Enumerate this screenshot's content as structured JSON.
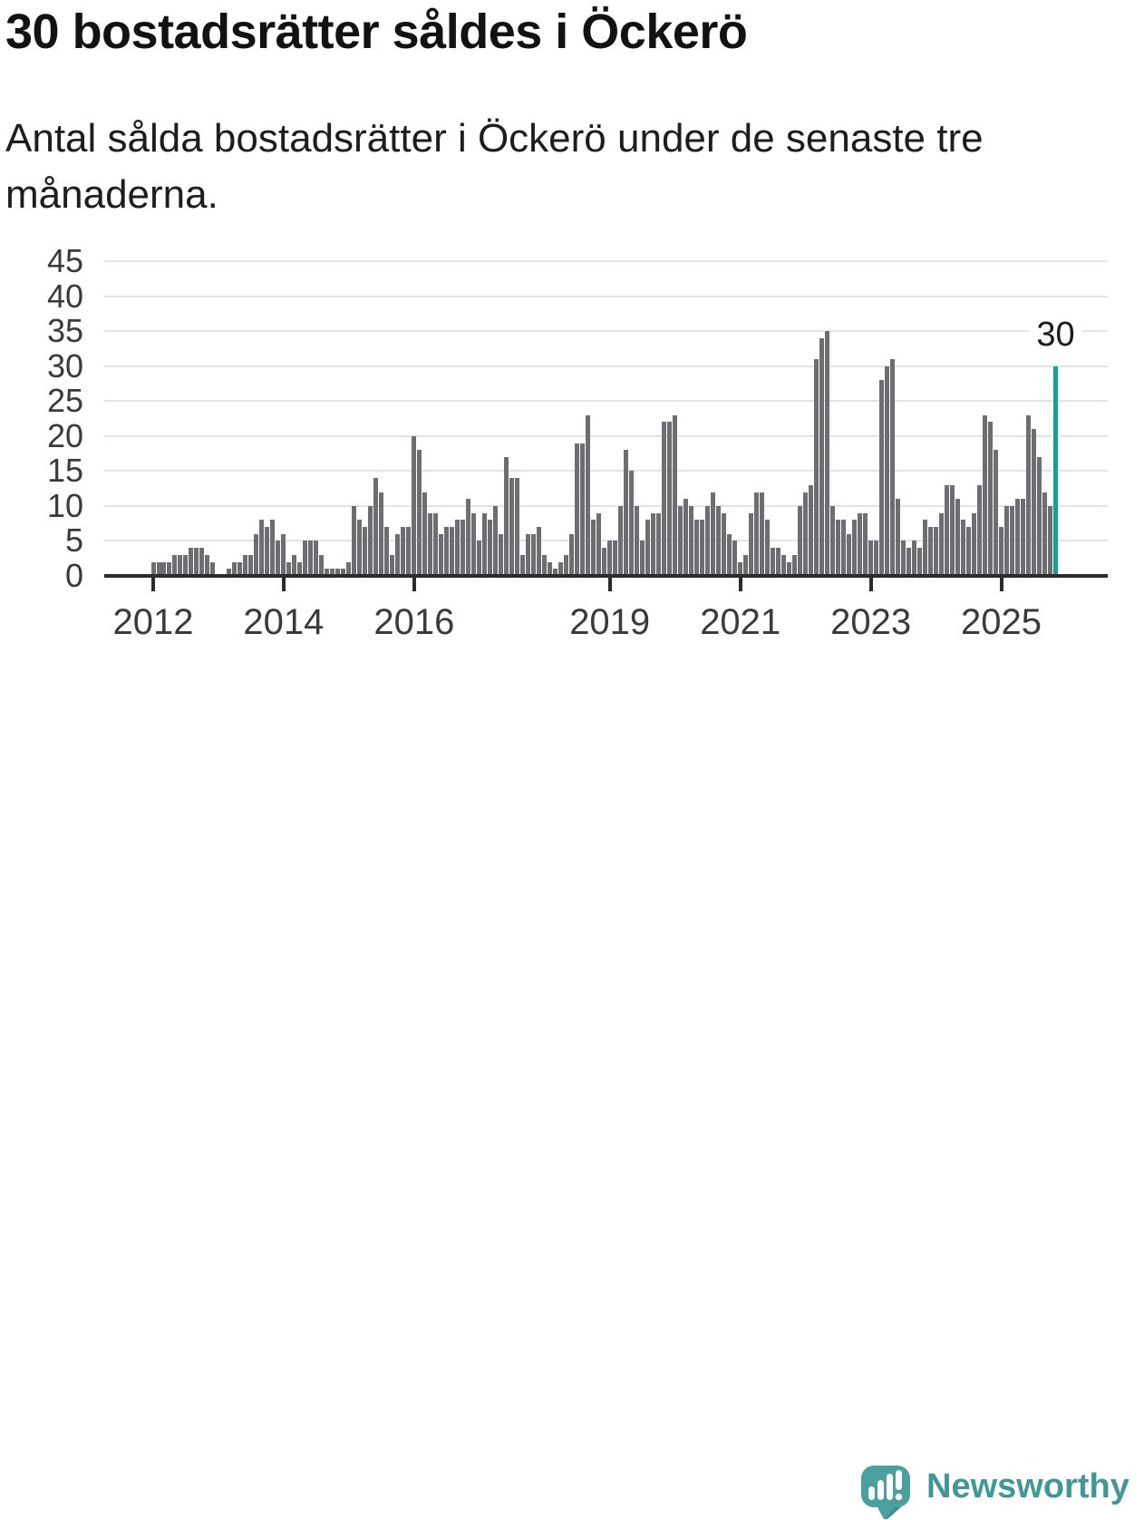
{
  "title": "30 bostadsrätter såldes i Öckerö",
  "subtitle": "Antal sålda bostadsrätter i Öckerö under de senaste tre månaderna.",
  "branding": {
    "name": "Newsworthy"
  },
  "chart_data": {
    "type": "bar",
    "title": "30 bostadsrätter såldes i Öckerö",
    "subtitle": "Antal sålda bostadsrätter i Öckerö under de senaste tre månaderna.",
    "xlabel": "",
    "ylabel": "",
    "period": "monthly",
    "x_start": "2012-01",
    "ylim": [
      0,
      45
    ],
    "yticks": [
      0,
      5,
      10,
      15,
      20,
      25,
      30,
      35,
      40,
      45
    ],
    "xticks": [
      2012,
      2014,
      2016,
      2019,
      2021,
      2023,
      2025
    ],
    "grid": true,
    "legend": "none",
    "bar_color": "#6d6d72",
    "highlight_color": "#10a19e",
    "highlight_index": 166,
    "highlight_value": 30,
    "annotation": "30",
    "values": [
      2,
      2,
      2,
      2,
      3,
      3,
      3,
      4,
      4,
      4,
      3,
      2,
      0,
      0,
      1,
      2,
      2,
      3,
      3,
      6,
      8,
      7,
      8,
      5,
      6,
      2,
      3,
      2,
      5,
      5,
      5,
      3,
      1,
      1,
      1,
      1,
      2,
      10,
      8,
      7,
      10,
      14,
      12,
      7,
      3,
      6,
      7,
      7,
      20,
      18,
      12,
      9,
      9,
      6,
      7,
      7,
      8,
      8,
      11,
      9,
      5,
      9,
      8,
      10,
      6,
      17,
      14,
      14,
      3,
      6,
      6,
      7,
      3,
      2,
      1,
      2,
      3,
      6,
      19,
      19,
      23,
      8,
      9,
      4,
      5,
      5,
      10,
      18,
      15,
      10,
      5,
      8,
      9,
      9,
      22,
      22,
      23,
      10,
      11,
      10,
      8,
      8,
      10,
      12,
      10,
      9,
      6,
      5,
      2,
      3,
      9,
      12,
      12,
      8,
      4,
      4,
      3,
      2,
      3,
      10,
      12,
      13,
      31,
      34,
      35,
      10,
      8,
      8,
      6,
      8,
      9,
      9,
      5,
      5,
      28,
      30,
      31,
      11,
      5,
      4,
      5,
      4,
      8,
      7,
      7,
      9,
      13,
      13,
      11,
      8,
      7,
      9,
      13,
      23,
      22,
      18,
      7,
      10,
      10,
      11,
      11,
      23,
      21,
      17,
      12,
      10,
      30
    ]
  }
}
